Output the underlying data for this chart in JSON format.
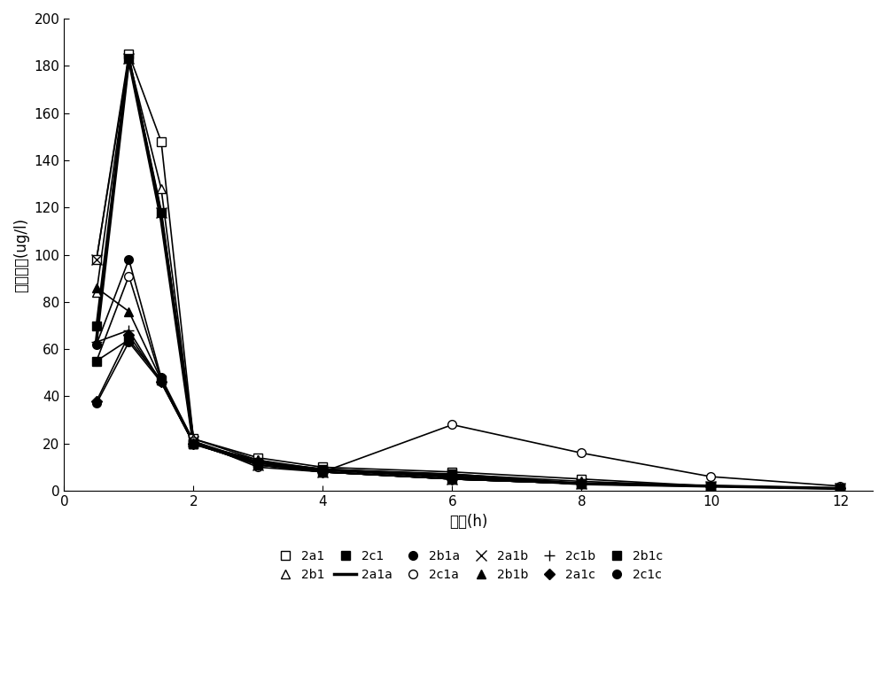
{
  "series": {
    "2a1": {
      "x": [
        0.5,
        1.0,
        1.5,
        2.0,
        3.0,
        4.0,
        6.0,
        8.0,
        10.0,
        12.0
      ],
      "y": [
        98,
        185,
        148,
        22,
        14,
        10,
        8,
        5,
        2,
        1
      ]
    },
    "2b1": {
      "x": [
        0.5,
        1.0,
        1.5,
        2.0,
        3.0,
        4.0,
        6.0,
        8.0,
        10.0,
        12.0
      ],
      "y": [
        84,
        183,
        128,
        22,
        13,
        9,
        7,
        4,
        2,
        1
      ]
    },
    "2c1": {
      "x": [
        0.5,
        1.0,
        1.5,
        2.0,
        3.0,
        4.0,
        6.0,
        8.0,
        10.0,
        12.0
      ],
      "y": [
        70,
        183,
        118,
        20,
        12,
        9,
        7,
        3,
        2,
        1
      ]
    },
    "2a1a": {
      "x": [
        0.5,
        1.0,
        1.5,
        2.0,
        3.0,
        4.0,
        6.0,
        8.0,
        10.0,
        12.0
      ],
      "y": [
        64,
        183,
        115,
        20,
        12,
        9,
        6,
        3,
        2,
        1
      ]
    },
    "2b1a": {
      "x": [
        0.5,
        1.0,
        1.5,
        2.0,
        3.0,
        4.0,
        6.0,
        8.0,
        10.0,
        12.0
      ],
      "y": [
        62,
        98,
        48,
        21,
        12,
        8,
        5,
        3,
        2,
        1
      ]
    },
    "2c1a": {
      "x": [
        0.5,
        1.0,
        1.5,
        2.0,
        3.0,
        4.0,
        6.0,
        8.0,
        10.0,
        12.0
      ],
      "y": [
        55,
        91,
        47,
        21,
        10,
        8,
        28,
        16,
        6,
        2
      ]
    },
    "2a1b": {
      "x": [
        0.5,
        1.0,
        1.5,
        2.0,
        3.0,
        4.0,
        6.0,
        8.0,
        10.0,
        12.0
      ],
      "y": [
        98,
        183,
        118,
        21,
        11,
        8,
        5,
        3,
        2,
        1
      ]
    },
    "2b1b": {
      "x": [
        0.5,
        1.0,
        1.5,
        2.0,
        3.0,
        4.0,
        6.0,
        8.0,
        10.0,
        12.0
      ],
      "y": [
        86,
        76,
        47,
        20,
        13,
        8,
        5,
        3,
        2,
        1
      ]
    },
    "2c1b": {
      "x": [
        0.5,
        1.0,
        1.5,
        2.0,
        3.0,
        4.0,
        6.0,
        8.0,
        10.0,
        12.0
      ],
      "y": [
        63,
        68,
        46,
        20,
        11,
        8,
        5,
        3,
        2,
        1
      ]
    },
    "2a1c": {
      "x": [
        0.5,
        1.0,
        1.5,
        2.0,
        3.0,
        4.0,
        6.0,
        8.0,
        10.0,
        12.0
      ],
      "y": [
        38,
        66,
        46,
        20,
        12,
        8,
        5,
        3,
        2,
        1
      ]
    },
    "2b1c": {
      "x": [
        0.5,
        1.0,
        1.5,
        2.0,
        3.0,
        4.0,
        6.0,
        8.0,
        10.0,
        12.0
      ],
      "y": [
        55,
        64,
        47,
        20,
        11,
        8,
        5,
        3,
        2,
        1
      ]
    },
    "2c1c": {
      "x": [
        0.5,
        1.0,
        1.5,
        2.0,
        3.0,
        4.0,
        6.0,
        8.0,
        10.0,
        12.0
      ],
      "y": [
        37,
        63,
        46,
        20,
        11,
        8,
        5,
        3,
        2,
        1
      ]
    }
  },
  "series_props": {
    "2a1": {
      "marker": "s",
      "mfc": "white",
      "mec": "black",
      "ms": 7,
      "lw": 1.2
    },
    "2b1": {
      "marker": "^",
      "mfc": "white",
      "mec": "black",
      "ms": 7,
      "lw": 1.2
    },
    "2c1": {
      "marker": "s",
      "mfc": "black",
      "mec": "black",
      "ms": 7,
      "lw": 1.8
    },
    "2a1a": {
      "marker": "none",
      "mfc": "black",
      "mec": "black",
      "ms": 0,
      "lw": 2.5
    },
    "2b1a": {
      "marker": "o",
      "mfc": "black",
      "mec": "black",
      "ms": 7,
      "lw": 1.2
    },
    "2c1a": {
      "marker": "o",
      "mfc": "white",
      "mec": "black",
      "ms": 7,
      "lw": 1.2
    },
    "2a1b": {
      "marker": "x",
      "mfc": "black",
      "mec": "black",
      "ms": 8,
      "lw": 1.2
    },
    "2b1b": {
      "marker": "^",
      "mfc": "black",
      "mec": "black",
      "ms": 7,
      "lw": 1.2
    },
    "2c1b": {
      "marker": "+",
      "mfc": "black",
      "mec": "black",
      "ms": 9,
      "lw": 1.2
    },
    "2a1c": {
      "marker": "D",
      "mfc": "black",
      "mec": "black",
      "ms": 6,
      "lw": 1.2
    },
    "2b1c": {
      "marker": "s",
      "mfc": "black",
      "mec": "black",
      "ms": 7,
      "lw": 1.2
    },
    "2c1c": {
      "marker": "o",
      "mfc": "black",
      "mec": "black",
      "ms": 7,
      "lw": 1.2
    }
  },
  "xlabel": "时间(h)",
  "ylabel": "血药浓度(ug/l)",
  "xlim": [
    0,
    12.5
  ],
  "ylim": [
    0,
    200
  ],
  "xticks": [
    0,
    2,
    4,
    6,
    8,
    10,
    12
  ],
  "yticks": [
    0,
    20,
    40,
    60,
    80,
    100,
    120,
    140,
    160,
    180,
    200
  ],
  "legend_order": [
    "2a1",
    "2b1",
    "2c1",
    "2a1a",
    "2b1a",
    "2c1a",
    "2a1b",
    "2b1b",
    "2c1b",
    "2a1c",
    "2b1c",
    "2c1c"
  ],
  "figure_size": [
    10.0,
    7.88
  ],
  "dpi": 100
}
